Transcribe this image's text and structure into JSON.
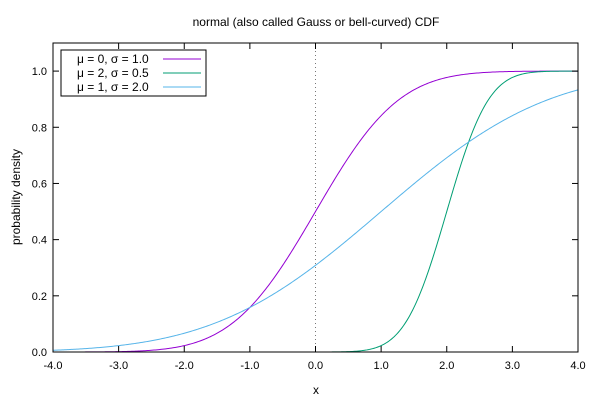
{
  "chart_data": {
    "type": "line",
    "title": "normal (also called Gauss or bell-curved) CDF",
    "xlabel": "x",
    "ylabel": "probability density",
    "xlim": [
      -4.0,
      4.0
    ],
    "ylim": [
      0.0,
      1.1
    ],
    "x_ticks": [
      -4.0,
      -3.0,
      -2.0,
      -1.0,
      0.0,
      1.0,
      2.0,
      3.0,
      4.0
    ],
    "x_tick_labels": [
      "-4.0",
      "-3.0",
      "-2.0",
      "-1.0",
      "0.0",
      "1.0",
      "2.0",
      "3.0",
      "4.0"
    ],
    "y_ticks": [
      0.0,
      0.2,
      0.4,
      0.6,
      0.8,
      1.0
    ],
    "y_tick_labels": [
      "0.0",
      "0.2",
      "0.4",
      "0.6",
      "0.8",
      "1.0"
    ],
    "grid": false,
    "legend_position": "top-left",
    "reference_line_x": 0.0,
    "series": [
      {
        "name": "μ = 0, σ = 1.0",
        "mu": 0,
        "sigma": 1.0,
        "color": "#9400d3",
        "x": [
          -4.0,
          -3.0,
          -2.0,
          -1.0,
          0.0,
          1.0,
          2.0,
          3.0,
          4.0
        ],
        "y": [
          0.0,
          0.0013,
          0.0228,
          0.1587,
          0.5,
          0.8413,
          0.9772,
          0.9987,
          1.0
        ]
      },
      {
        "name": "μ = 2, σ = 0.5",
        "mu": 2,
        "sigma": 0.5,
        "color": "#009e73",
        "x": [
          -4.0,
          0.0,
          0.5,
          1.0,
          1.5,
          2.0,
          2.5,
          3.0,
          3.5,
          4.0
        ],
        "y": [
          0.0,
          0.0,
          0.0013,
          0.0228,
          0.1587,
          0.5,
          0.8413,
          0.9772,
          0.9987,
          1.0
        ]
      },
      {
        "name": "μ = 1, σ = 2.0",
        "mu": 1,
        "sigma": 2.0,
        "color": "#56b4e9",
        "x": [
          -4.0,
          -3.0,
          -2.0,
          -1.0,
          0.0,
          1.0,
          2.0,
          3.0,
          4.0
        ],
        "y": [
          0.0062,
          0.0228,
          0.0668,
          0.1587,
          0.3085,
          0.5,
          0.6915,
          0.8413,
          0.9332
        ]
      }
    ]
  }
}
